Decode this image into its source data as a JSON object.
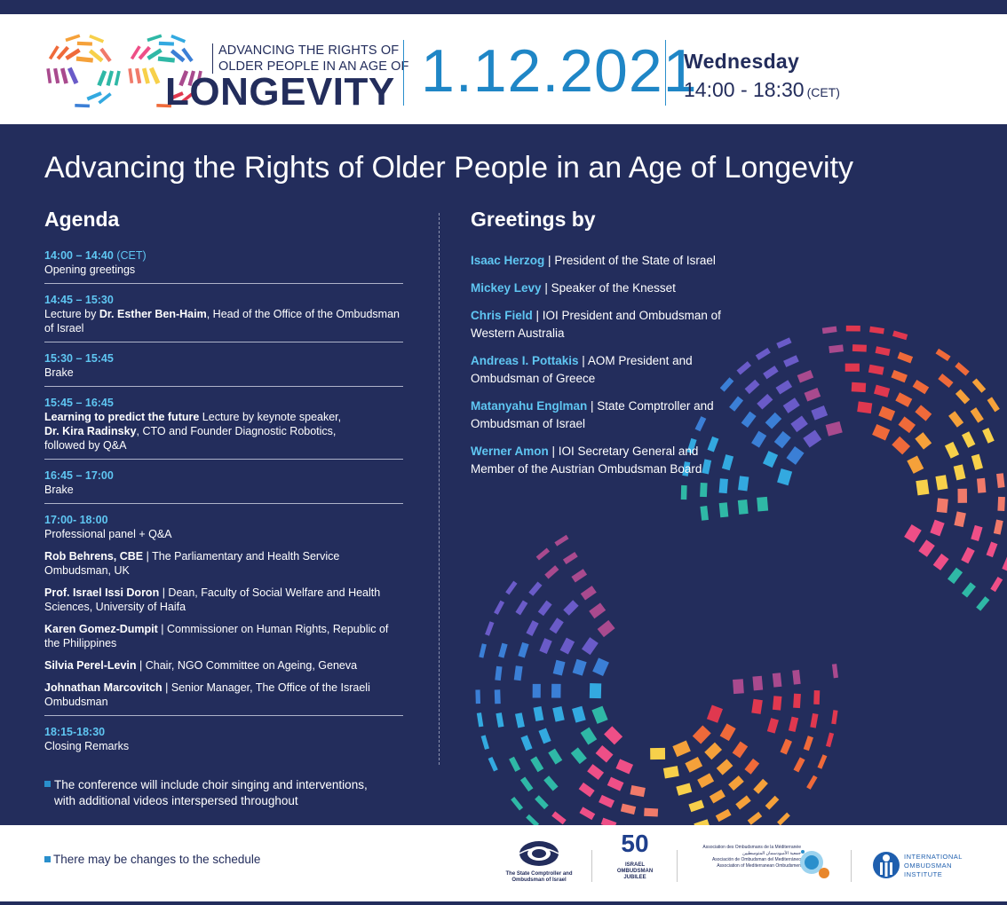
{
  "header": {
    "tagline_1": "ADVANCING THE RIGHTS OF",
    "tagline_2": "OLDER PEOPLE IN AN AGE OF",
    "logo_word": "LONGEVITY",
    "date": "1.12.2021",
    "weekday": "Wednesday",
    "time": "14:00 - 18:30",
    "timezone": "(CET)"
  },
  "main": {
    "title": "Advancing the Rights of Older People in an Age of Longevity",
    "agenda_heading": "Agenda",
    "greetings_heading": "Greetings by"
  },
  "agenda": [
    {
      "time": "14:00 – 14:40",
      "time_suffix": "(CET)",
      "text": "Opening greetings"
    },
    {
      "time": "14:45 – 15:30",
      "pre": " Lecture by ",
      "bold": "Dr. Esther Ben-Haim",
      "post": ", Head of the Office of the Ombudsman of Israel"
    },
    {
      "time": "15:30 – 15:45",
      "text": " Brake"
    },
    {
      "time": "15:45 – 16:45",
      "bold1": "Learning to predict the future",
      "mid1": " Lecture by keynote speaker,",
      "bold2": "Dr. Kira Radinsky",
      "mid2": ", CTO and Founder Diagnostic Robotics,",
      "line3": "followed by Q&A"
    },
    {
      "time": "16:45 – 17:00",
      "text": " Brake"
    },
    {
      "time": "17:00- 18:00",
      "text": "Professional panel + Q&A"
    },
    {
      "time": "18:15-18:30",
      "text": "Closing Remarks"
    }
  ],
  "panelists": [
    {
      "name": "Rob Behrens, CBE",
      "role": "The Parliamentary and Health Service Ombudsman, UK"
    },
    {
      "name": "Prof. Israel Issi Doron",
      "role": "Dean, Faculty of Social Welfare and Health Sciences, University of Haifa"
    },
    {
      "name": "Karen Gomez-Dumpit",
      "role": "Commissioner on Human Rights, Republic of the Philippines"
    },
    {
      "name": "Silvia Perel-Levin",
      "role": "Chair, NGO Committee on Ageing, Geneva"
    },
    {
      "name": "Johnathan Marcovitch",
      "role": "Senior Manager, The Office of the Israeli Ombudsman"
    }
  ],
  "greetings": [
    {
      "name": "Isaac Herzog",
      "role": "President of the State of Israel"
    },
    {
      "name": "Mickey Levy",
      "role": "Speaker of the Knesset"
    },
    {
      "name": "Chris Field",
      "role": "IOI President and Ombudsman of Western Australia"
    },
    {
      "name": "Andreas I. Pottakis",
      "role": "AOM President and Ombudsman of Greece"
    },
    {
      "name": "Matanyahu Englman",
      "role": "State Comptroller and Ombudsman of Israel"
    },
    {
      "name": "Werner Amon",
      "role": "IOI Secretary General and Member of the Austrian Ombudsman Board"
    }
  ],
  "separator": " | ",
  "notes": {
    "conference_1": "The conference will include choir singing and interventions,",
    "conference_2": "with additional videos interspersed throughout",
    "schedule": "There may be changes to the schedule"
  },
  "footer_logos": {
    "comptroller": "The State Comptroller and Ombudsman of Israel",
    "jubilee_num": "50",
    "jubilee_1": "ISRAEL",
    "jubilee_2": "OMBUDSMAN",
    "jubilee_3": "JUBILEE",
    "aom_1": "Association des Ombudsmans de la Méditerranée",
    "aom_2": "جمعية الأمبودسمان المتوسطيين",
    "aom_3": "Asociación de Ombudsman del Mediterráneo",
    "aom_4": "Association of Mediterranean Ombudsmen",
    "ioi_1": "INTERNATIONAL",
    "ioi_2": "OMBUDSMAN",
    "ioi_3": "INSTITUTE"
  },
  "colors": {
    "navy": "#232d5c",
    "accent_blue": "#1f86c6",
    "light_blue": "#5fc6f2"
  }
}
